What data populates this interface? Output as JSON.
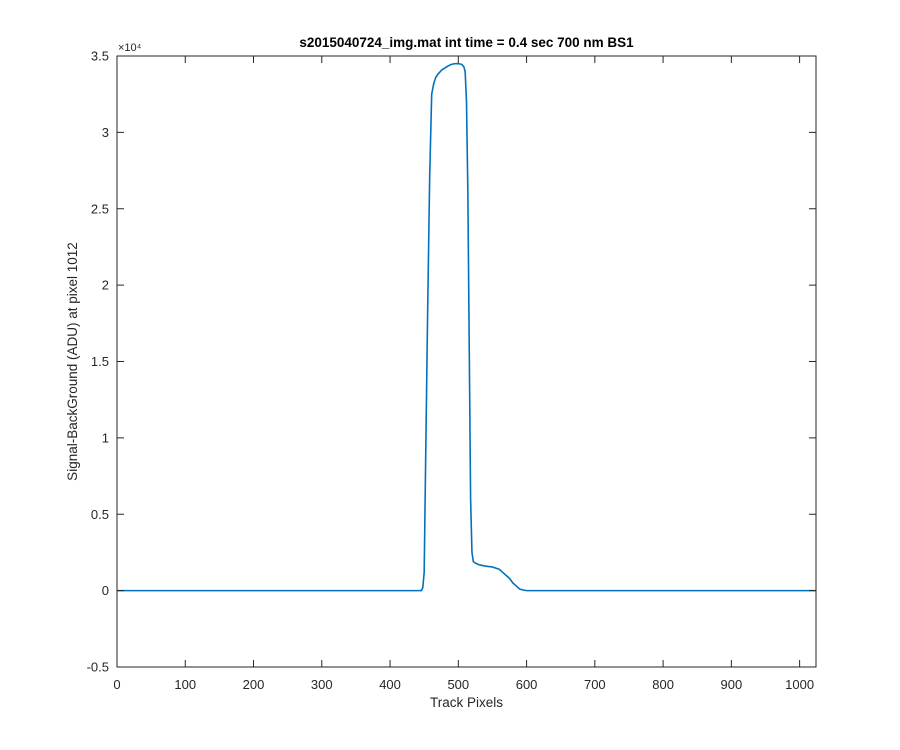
{
  "chart_data": {
    "type": "line",
    "title": "s2015040724_img.mat int time = 0.4 sec  700 nm BS1",
    "xlabel": "Track Pixels",
    "ylabel": "Signal-BackGround (ADU) at pixel 1012",
    "y_exponent": "×10⁴",
    "xlim": [
      0,
      1024
    ],
    "ylim": [
      -0.5,
      3.5
    ],
    "x_ticks": [
      0,
      100,
      200,
      300,
      400,
      500,
      600,
      700,
      800,
      900,
      1000
    ],
    "y_ticks": [
      -0.5,
      0,
      0.5,
      1,
      1.5,
      2,
      2.5,
      3,
      3.5
    ],
    "y_tick_labels": [
      "-0.5",
      "0",
      "0.5",
      "1",
      "1.5",
      "2",
      "2.5",
      "3",
      "3.5"
    ],
    "grid": false,
    "line_color": "#0072bd",
    "series": [
      {
        "x": [
          0,
          100,
          200,
          300,
          400,
          440,
          446,
          448,
          450,
          452,
          455,
          458,
          461,
          464,
          467,
          470,
          472,
          474,
          476,
          478,
          480,
          485,
          490,
          495,
          500,
          505,
          508,
          510,
          512,
          514,
          516,
          518,
          520,
          522,
          525,
          530,
          540,
          550,
          560,
          565,
          570,
          575,
          580,
          585,
          590,
          595,
          600,
          620,
          650,
          700,
          800,
          900,
          1000,
          1024
        ],
        "y": [
          0,
          0,
          0,
          0,
          0,
          0,
          0.0,
          0.02,
          0.12,
          0.8,
          1.8,
          2.7,
          3.25,
          3.32,
          3.36,
          3.38,
          3.39,
          3.4,
          3.41,
          3.415,
          3.42,
          3.435,
          3.445,
          3.45,
          3.45,
          3.445,
          3.43,
          3.4,
          3.2,
          2.6,
          1.6,
          0.6,
          0.25,
          0.19,
          0.18,
          0.17,
          0.16,
          0.155,
          0.14,
          0.12,
          0.1,
          0.08,
          0.05,
          0.03,
          0.01,
          0.004,
          0.0,
          0,
          0,
          0,
          0,
          0,
          0,
          0
        ]
      }
    ]
  }
}
